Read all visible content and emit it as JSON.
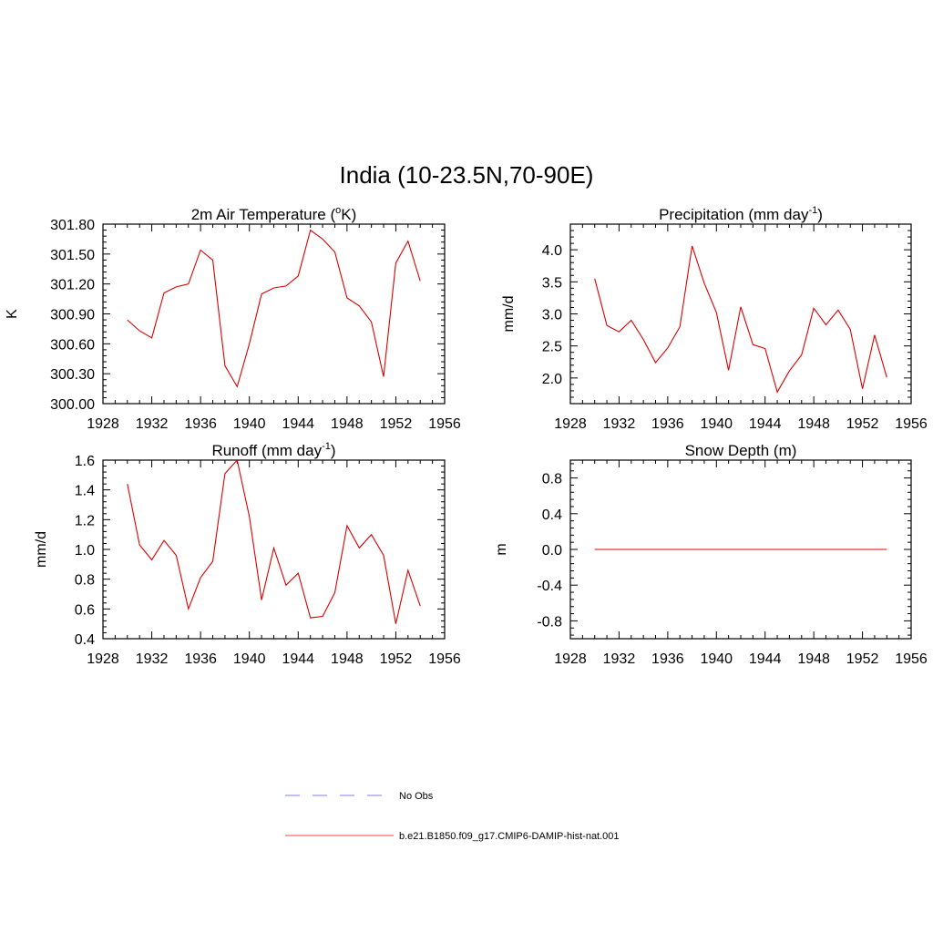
{
  "figure": {
    "title": "India (10-23.5N,70-90E)"
  },
  "legend": [
    {
      "label": "No Obs",
      "color": "#9999ee",
      "dash": true
    },
    {
      "label": "b.e21.B1850.f09_g17.CMIP6-DAMIP-hist-nat.001",
      "color": "#ff6666",
      "dash": false
    }
  ],
  "chart_data": [
    {
      "type": "line",
      "title": "2m Air Temperature (",
      "title_sup": "o",
      "title_suffix": "K)",
      "ylabel": "K",
      "xlim": [
        1928,
        1956
      ],
      "ylim": [
        300.0,
        301.8
      ],
      "xticks": [
        "1928",
        "1932",
        "1936",
        "1940",
        "1944",
        "1948",
        "1952",
        "1956"
      ],
      "yticks": [
        "300.00",
        "300.30",
        "300.60",
        "300.90",
        "301.20",
        "301.50",
        "301.80"
      ],
      "color": "#dd0000",
      "x": [
        1930,
        1931,
        1932,
        1933,
        1934,
        1935,
        1936,
        1937,
        1938,
        1939,
        1940,
        1941,
        1942,
        1943,
        1944,
        1945,
        1946,
        1947,
        1948,
        1949,
        1950,
        1951,
        1952,
        1953,
        1954
      ],
      "y": [
        300.84,
        300.73,
        300.66,
        301.11,
        301.17,
        301.2,
        301.54,
        301.44,
        300.38,
        300.17,
        300.6,
        301.1,
        301.16,
        301.18,
        301.28,
        301.74,
        301.65,
        301.52,
        301.06,
        300.98,
        300.82,
        300.27,
        301.41,
        301.63,
        301.23
      ]
    },
    {
      "type": "line",
      "title": "Precipitation (mm day",
      "title_sup": "-1",
      "title_suffix": ")",
      "ylabel": "mm/d",
      "xlim": [
        1928,
        1956
      ],
      "ylim": [
        1.6,
        4.4
      ],
      "xticks": [
        "1928",
        "1932",
        "1936",
        "1940",
        "1944",
        "1948",
        "1952",
        "1956"
      ],
      "yticks": [
        "2.0",
        "2.5",
        "3.0",
        "3.5",
        "4.0"
      ],
      "color": "#dd0000",
      "x": [
        1930,
        1931,
        1932,
        1933,
        1934,
        1935,
        1936,
        1937,
        1938,
        1939,
        1940,
        1941,
        1942,
        1943,
        1944,
        1945,
        1946,
        1947,
        1948,
        1949,
        1950,
        1951,
        1952,
        1953,
        1954
      ],
      "y": [
        3.55,
        2.82,
        2.72,
        2.9,
        2.6,
        2.24,
        2.47,
        2.8,
        4.06,
        3.48,
        3.02,
        2.12,
        3.11,
        2.52,
        2.46,
        1.78,
        2.11,
        2.36,
        3.09,
        2.83,
        3.06,
        2.76,
        1.83,
        2.67,
        2.01
      ]
    },
    {
      "type": "line",
      "title": "Runoff (mm day",
      "title_sup": "-1",
      "title_suffix": ")",
      "ylabel": "mm/d",
      "xlim": [
        1928,
        1956
      ],
      "ylim": [
        0.4,
        1.6
      ],
      "xticks": [
        "1928",
        "1932",
        "1936",
        "1940",
        "1944",
        "1948",
        "1952",
        "1956"
      ],
      "yticks": [
        "0.4",
        "0.6",
        "0.8",
        "1.0",
        "1.2",
        "1.4",
        "1.6"
      ],
      "color": "#dd0000",
      "x": [
        1930,
        1931,
        1932,
        1933,
        1934,
        1935,
        1936,
        1937,
        1938,
        1939,
        1940,
        1941,
        1942,
        1943,
        1944,
        1945,
        1946,
        1947,
        1948,
        1949,
        1950,
        1951,
        1952,
        1953,
        1954
      ],
      "y": [
        1.44,
        1.03,
        0.93,
        1.06,
        0.96,
        0.6,
        0.81,
        0.92,
        1.51,
        1.6,
        1.22,
        0.66,
        1.01,
        0.76,
        0.84,
        0.54,
        0.55,
        0.71,
        1.16,
        1.01,
        1.1,
        0.96,
        0.5,
        0.86,
        0.62
      ]
    },
    {
      "type": "line",
      "title": "Snow Depth (m)",
      "title_sup": "",
      "title_suffix": "",
      "ylabel": "m",
      "xlim": [
        1928,
        1956
      ],
      "ylim": [
        -1.0,
        1.0
      ],
      "xticks": [
        "1928",
        "1932",
        "1936",
        "1940",
        "1944",
        "1948",
        "1952",
        "1956"
      ],
      "yticks": [
        "-0.8",
        "-0.4",
        "0.0",
        "0.4",
        "0.8"
      ],
      "color": "#dd0000",
      "x": [
        1930,
        1931,
        1932,
        1933,
        1934,
        1935,
        1936,
        1937,
        1938,
        1939,
        1940,
        1941,
        1942,
        1943,
        1944,
        1945,
        1946,
        1947,
        1948,
        1949,
        1950,
        1951,
        1952,
        1953,
        1954
      ],
      "y": [
        0,
        0,
        0,
        0,
        0,
        0,
        0,
        0,
        0,
        0,
        0,
        0,
        0,
        0,
        0,
        0,
        0,
        0,
        0,
        0,
        0,
        0,
        0,
        0,
        0
      ]
    }
  ]
}
